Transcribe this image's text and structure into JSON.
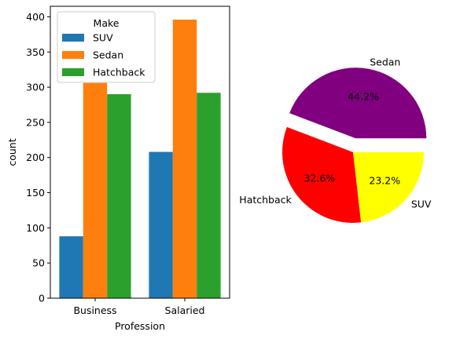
{
  "chart_data": [
    {
      "type": "bar",
      "categories": [
        "Business",
        "Salaried"
      ],
      "series": [
        {
          "name": "SUV",
          "values": [
            88,
            208
          ],
          "color": "#1f77b4"
        },
        {
          "name": "Sedan",
          "values": [
            306,
            396
          ],
          "color": "#ff7f0e"
        },
        {
          "name": "Hatchback",
          "values": [
            290,
            292
          ],
          "color": "#2ca02c"
        }
      ],
      "xlabel": "Profession",
      "ylabel": "count",
      "ylim": [
        0,
        415
      ],
      "yticks": [
        0,
        50,
        100,
        150,
        200,
        250,
        300,
        350,
        400
      ],
      "legend": {
        "title": "Make",
        "placement": "top-left"
      },
      "grid": false
    },
    {
      "type": "pie",
      "slices": [
        {
          "label": "Sedan",
          "value": 44.2,
          "pct_label": "44.2%",
          "color": "#800080",
          "exploded": true
        },
        {
          "label": "Hatchback",
          "value": 32.6,
          "pct_label": "32.6%",
          "color": "#ff0000",
          "exploded": false
        },
        {
          "label": "SUV",
          "value": 23.2,
          "pct_label": "23.2%",
          "color": "#ffff00",
          "exploded": false
        }
      ]
    }
  ]
}
